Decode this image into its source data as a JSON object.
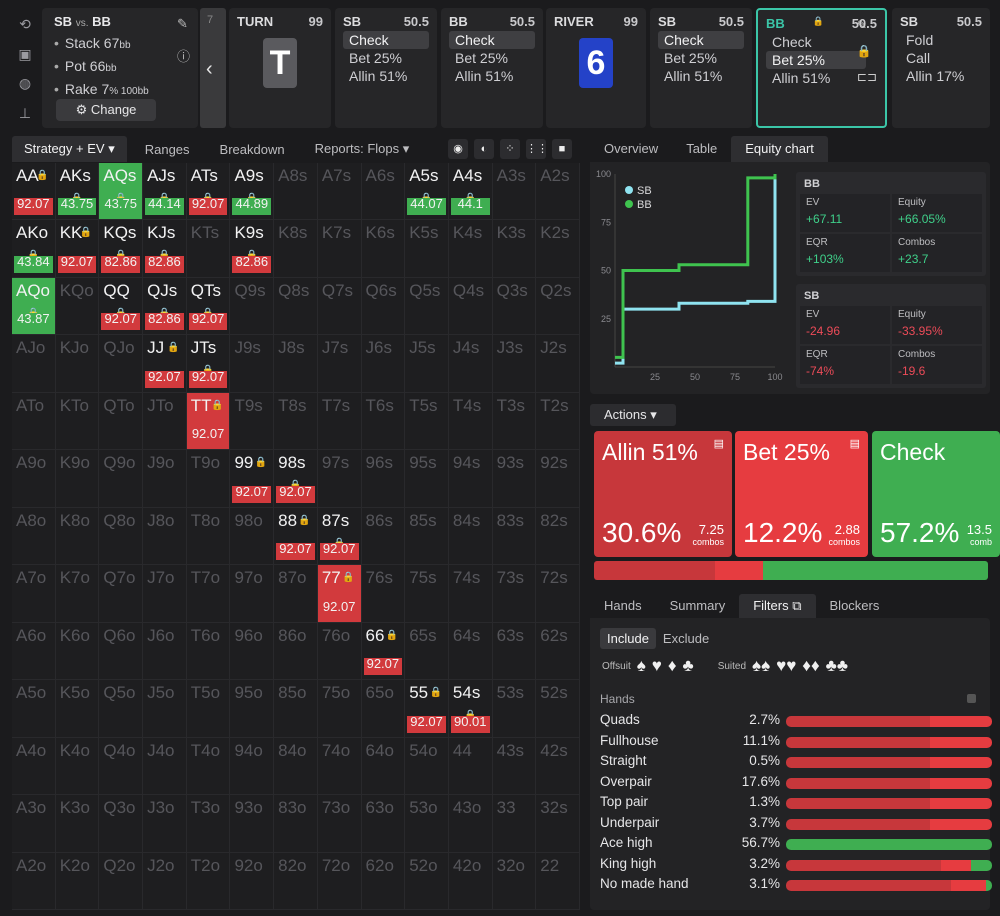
{
  "header": {
    "matchup": "SB",
    "vs": "vs.",
    "matchup2": "BB",
    "info": [
      {
        "label": "Stack 67",
        "unit": "bb"
      },
      {
        "label": "Pot 66",
        "unit": "bb"
      },
      {
        "label": "Rake 7",
        "unit": "% 100bb"
      }
    ],
    "change_label": "Change",
    "back_num": "7",
    "back_chevron": "‹"
  },
  "nodes": [
    {
      "player": "TURN",
      "size": "99",
      "card": "T",
      "card_color": "#5a5a5e"
    },
    {
      "player": "SB",
      "size": "50.5",
      "actions": [
        "Check",
        "Bet 25%",
        "Allin 51%"
      ],
      "selected": 0
    },
    {
      "player": "BB",
      "size": "50.5",
      "actions": [
        "Check",
        "Bet 25%",
        "Allin 51%"
      ],
      "selected": 0
    },
    {
      "player": "RIVER",
      "size": "99",
      "card": "6",
      "card_color": "#2442c8"
    },
    {
      "player": "SB",
      "size": "50.5",
      "actions": [
        "Check",
        "Bet 25%",
        "Allin 51%"
      ],
      "selected": 0
    },
    {
      "player": "BB",
      "size": "50.5",
      "actions": [
        "Check",
        "Bet 25%",
        "Allin 51%"
      ],
      "selected": 1
    },
    {
      "player": "SB",
      "size": "50.5",
      "actions": [
        "Fold",
        "Call",
        "Allin 17%"
      ],
      "selected": -1
    }
  ],
  "left_tabs": [
    "Strategy + EV",
    "Ranges",
    "Breakdown",
    "Reports: Flops"
  ],
  "grid": {
    "ranks": [
      "A",
      "K",
      "Q",
      "J",
      "T",
      "9",
      "8",
      "7",
      "6",
      "5",
      "4",
      "3",
      "2"
    ],
    "cells": {
      "0-0": {
        "ev": "92.07",
        "fill": "r"
      },
      "0-1": {
        "ev": "43.75",
        "fill": "g"
      },
      "0-2": {
        "ev": "43.75",
        "fill": "g",
        "full": "g"
      },
      "0-3": {
        "ev": "44.14",
        "fill": "g"
      },
      "0-4": {
        "ev": "92.07",
        "fill": "r"
      },
      "0-5": {
        "ev": "44.89",
        "fill": "g"
      },
      "0-9": {
        "ev": "44.07",
        "fill": "g"
      },
      "0-10": {
        "ev": "44.1",
        "fill": "g"
      },
      "1-0": {
        "ev": "43.84",
        "fill": "g"
      },
      "1-1": {
        "ev": "92.07",
        "fill": "r"
      },
      "1-2": {
        "ev": "82.86",
        "fill": "r"
      },
      "1-3": {
        "ev": "82.86",
        "fill": "r"
      },
      "1-5": {
        "ev": "82.86",
        "fill": "r"
      },
      "2-0": {
        "ev": "43.87",
        "fill": "g",
        "full": "g"
      },
      "2-2": {
        "ev": "92.07",
        "fill": "r"
      },
      "2-3": {
        "ev": "82.86",
        "fill": "r"
      },
      "2-4": {
        "ev": "92.07",
        "fill": "r"
      },
      "3-3": {
        "ev": "92.07",
        "fill": "r"
      },
      "3-4": {
        "ev": "92.07",
        "fill": "r"
      },
      "4-4": {
        "ev": "92.07",
        "fill": "r",
        "full": "r"
      },
      "5-5": {
        "ev": "92.07",
        "fill": "r"
      },
      "5-6": {
        "ev": "92.07",
        "fill": "r"
      },
      "6-6": {
        "ev": "92.07",
        "fill": "r"
      },
      "6-7": {
        "ev": "92.07",
        "fill": "r"
      },
      "7-7": {
        "ev": "92.07",
        "fill": "r",
        "full": "r"
      },
      "8-8": {
        "ev": "92.07",
        "fill": "r"
      },
      "9-9": {
        "ev": "92.07",
        "fill": "r"
      },
      "9-10": {
        "ev": "90.01",
        "fill": "r"
      }
    },
    "locked": {
      "0-0": "top",
      "0-1": "mid",
      "0-2": "mid",
      "0-3": "mid",
      "0-4": "mid",
      "0-5": "mid",
      "0-9": "mid",
      "0-10": "mid",
      "1-0": "mid",
      "1-1": "top",
      "1-2": "mid",
      "1-3": "mid",
      "1-5": "mid",
      "2-0": "mid",
      "2-2": "mid",
      "2-3": "mid",
      "2-4": "mid",
      "3-3": "top",
      "3-4": "mid",
      "4-4": "top",
      "5-5": "top",
      "5-6": "mid",
      "6-6": "top",
      "6-7": "mid",
      "7-7": "top",
      "8-8": "top",
      "9-9": "top",
      "9-10": "mid"
    }
  },
  "right_tabs": [
    "Overview",
    "Table",
    "Equity chart"
  ],
  "equity_chart": {
    "legend": [
      "SB",
      "BB"
    ],
    "colors": {
      "SB": "#8fe3f0",
      "BB": "#3fc34f"
    },
    "y_ticks": [
      "100",
      "75",
      "50",
      "25"
    ],
    "x_ticks": [
      "25",
      "50",
      "75",
      "100"
    ]
  },
  "chart_data": {
    "type": "line",
    "x": [
      0,
      5,
      40,
      83,
      100
    ],
    "series": [
      {
        "name": "SB",
        "values": [
          2,
          30,
          33,
          34,
          100
        ]
      },
      {
        "name": "BB",
        "values": [
          5,
          50,
          53,
          98,
          100
        ]
      }
    ],
    "ylim": [
      0,
      100
    ],
    "xlim": [
      0,
      100
    ]
  },
  "stats": [
    {
      "who": "BB",
      "ev_label": "EV",
      "ev": "67.11",
      "eq_label": "Equity",
      "eq": "66.05%",
      "eqr_label": "EQR",
      "eqr": "103%",
      "combos_label": "Combos",
      "combos": "23.7",
      "sign": "pos"
    },
    {
      "who": "SB",
      "ev_label": "EV",
      "ev": "24.96",
      "eq_label": "Equity",
      "eq": "33.95%",
      "eqr_label": "EQR",
      "eqr": "74%",
      "combos_label": "Combos",
      "combos": "19.6",
      "sign": "neg"
    }
  ],
  "actions_label": "Actions",
  "actions": [
    {
      "name": "Allin 51%",
      "pct": "30.6%",
      "combos": "7.25",
      "combos_label": "combos",
      "color": "#c7373b",
      "share": 30.6
    },
    {
      "name": "Bet 25%",
      "pct": "12.2%",
      "combos": "2.88",
      "combos_label": "combos",
      "color": "#e63c40",
      "share": 12.2
    },
    {
      "name": "Check",
      "pct": "57.2%",
      "combos": "13.5",
      "combos_label": "comb",
      "color": "#3fae51",
      "share": 57.2
    }
  ],
  "bottom_tabs": [
    "Hands",
    "Summary",
    "Filters",
    "Blockers"
  ],
  "filters": {
    "include": "Include",
    "exclude": "Exclude",
    "offsuit_label": "Offsuit",
    "suited_label": "Suited",
    "hands_label": "Hands",
    "rows": [
      {
        "name": "Quads",
        "pct": "2.7%",
        "red": 0.7,
        "red2": 0.3,
        "green": 0
      },
      {
        "name": "Fullhouse",
        "pct": "11.1%",
        "red": 0.7,
        "red2": 0.3,
        "green": 0
      },
      {
        "name": "Straight",
        "pct": "0.5%",
        "red": 0.7,
        "red2": 0.3,
        "green": 0
      },
      {
        "name": "Overpair",
        "pct": "17.6%",
        "red": 0.7,
        "red2": 0.3,
        "green": 0
      },
      {
        "name": "Top pair",
        "pct": "1.3%",
        "red": 0.7,
        "red2": 0.3,
        "green": 0
      },
      {
        "name": "Underpair",
        "pct": "3.7%",
        "red": 0.7,
        "red2": 0.3,
        "green": 0
      },
      {
        "name": "Ace high",
        "pct": "56.7%",
        "red": 0,
        "red2": 0,
        "green": 1
      },
      {
        "name": "King high",
        "pct": "3.2%",
        "red": 0.75,
        "red2": 0.15,
        "green": 0.1
      },
      {
        "name": "No made hand",
        "pct": "3.1%",
        "red": 0.8,
        "red2": 0.17,
        "green": 0.03
      }
    ]
  }
}
